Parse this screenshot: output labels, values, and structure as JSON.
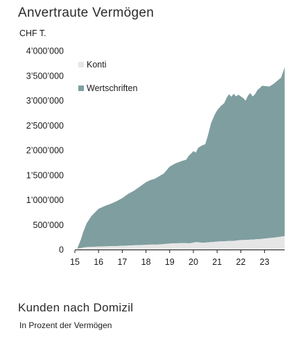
{
  "chart_data": {
    "type": "area",
    "stacked": true,
    "title": "Anvertraute Vermögen",
    "ylabel": "CHF T.",
    "ylim": [
      0,
      4000000
    ],
    "xlim": [
      15,
      23.85
    ],
    "grid": false,
    "legend_position": "top-left",
    "yticks": [
      {
        "value": 0,
        "label": "0"
      },
      {
        "value": 500000,
        "label": "500’000"
      },
      {
        "value": 1000000,
        "label": "1’000’000"
      },
      {
        "value": 1500000,
        "label": "1’500’000"
      },
      {
        "value": 2000000,
        "label": "2’000’000"
      },
      {
        "value": 2500000,
        "label": "2’500’000"
      },
      {
        "value": 3000000,
        "label": "3’000’000"
      },
      {
        "value": 3500000,
        "label": "3’500’000"
      },
      {
        "value": 4000000,
        "label": "4’000’000"
      }
    ],
    "xticks": [
      {
        "value": 15,
        "label": "15"
      },
      {
        "value": 16,
        "label": "16"
      },
      {
        "value": 17,
        "label": "17"
      },
      {
        "value": 18,
        "label": "18"
      },
      {
        "value": 19,
        "label": "19"
      },
      {
        "value": 20,
        "label": "20"
      },
      {
        "value": 21,
        "label": "21"
      },
      {
        "value": 22,
        "label": "22"
      },
      {
        "value": 23,
        "label": "23"
      }
    ],
    "x": [
      15,
      15.1,
      15.25,
      15.35,
      15.5,
      15.7,
      16,
      16.3,
      16.5,
      16.75,
      17,
      17.25,
      17.5,
      17.75,
      18,
      18.2,
      18.35,
      18.5,
      18.75,
      19,
      19.25,
      19.5,
      19.7,
      19.8,
      19.9,
      20,
      20.1,
      20.2,
      20.35,
      20.5,
      20.6,
      20.75,
      20.9,
      21,
      21.15,
      21.3,
      21.4,
      21.5,
      21.6,
      21.7,
      21.8,
      21.9,
      22,
      22.1,
      22.2,
      22.3,
      22.4,
      22.5,
      22.6,
      22.7,
      22.8,
      22.9,
      23,
      23.2,
      23.4,
      23.55,
      23.7,
      23.85
    ],
    "series": [
      {
        "name": "Konti",
        "color": "#e6e6e6",
        "values": [
          0,
          15000,
          30000,
          40000,
          50000,
          55000,
          60000,
          65000,
          68000,
          70000,
          75000,
          80000,
          85000,
          90000,
          95000,
          100000,
          100000,
          100000,
          110000,
          120000,
          125000,
          130000,
          130000,
          125000,
          130000,
          140000,
          150000,
          145000,
          140000,
          140000,
          145000,
          150000,
          155000,
          160000,
          165000,
          165000,
          170000,
          175000,
          175000,
          175000,
          180000,
          185000,
          190000,
          190000,
          195000,
          195000,
          200000,
          200000,
          205000,
          210000,
          210000,
          215000,
          220000,
          230000,
          240000,
          250000,
          260000,
          270000
        ]
      },
      {
        "name": "Wertschriften",
        "color": "#7f9ea0",
        "values": [
          0,
          5000,
          170000,
          310000,
          480000,
          620000,
          760000,
          820000,
          850000,
          900000,
          960000,
          1040000,
          1100000,
          1180000,
          1260000,
          1300000,
          1320000,
          1360000,
          1420000,
          1550000,
          1610000,
          1650000,
          1680000,
          1760000,
          1800000,
          1840000,
          1800000,
          1900000,
          1950000,
          1980000,
          2130000,
          2400000,
          2560000,
          2640000,
          2720000,
          2780000,
          2880000,
          2950000,
          2900000,
          2960000,
          2900000,
          2930000,
          2890000,
          2860000,
          2800000,
          2900000,
          2950000,
          2880000,
          2920000,
          3000000,
          3040000,
          3080000,
          3070000,
          3050000,
          3100000,
          3150000,
          3200000,
          3400000
        ]
      }
    ]
  },
  "sections": {
    "header": {
      "title": "Anvertraute Vermögen",
      "unit": "CHF T."
    },
    "next": {
      "title": "Kunden nach Domizil",
      "subtitle": "In Prozent der Vermögen"
    }
  }
}
